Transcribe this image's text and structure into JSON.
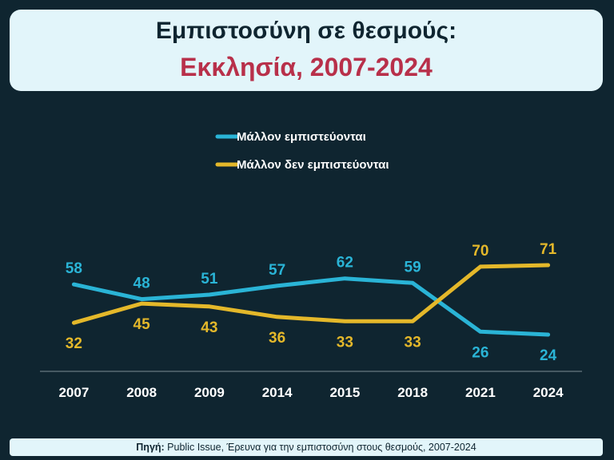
{
  "header": {
    "title_line1": "Εμπιστοσύνη σε θεσμούς:",
    "title_line2": "Εκκλησία, 2007-2024"
  },
  "footer": {
    "source_label": "Πηγή:",
    "source_text": " Public Issue, Έρευνα για την εμπιστοσύνη στους θεσμούς, 2007-2024"
  },
  "colors": {
    "background": "#0f2530",
    "panel": "#e2f5fa",
    "title_accent": "#b8304a",
    "trust": "#2ab4d6",
    "distrust": "#e4b82a"
  },
  "chart_data": {
    "type": "line",
    "categories": [
      "2007",
      "2008",
      "2009",
      "2014",
      "2015",
      "2018",
      "2021",
      "2024"
    ],
    "series": [
      {
        "name": "Μάλλον εμπιστεύονται",
        "color": "#2ab4d6",
        "values": [
          58,
          48,
          51,
          57,
          62,
          59,
          26,
          24
        ]
      },
      {
        "name": "Μάλλον δεν εμπιστεύονται",
        "color": "#e4b82a",
        "values": [
          32,
          45,
          43,
          36,
          33,
          33,
          70,
          71
        ]
      }
    ],
    "legend_position": "top-center",
    "grid": false
  }
}
